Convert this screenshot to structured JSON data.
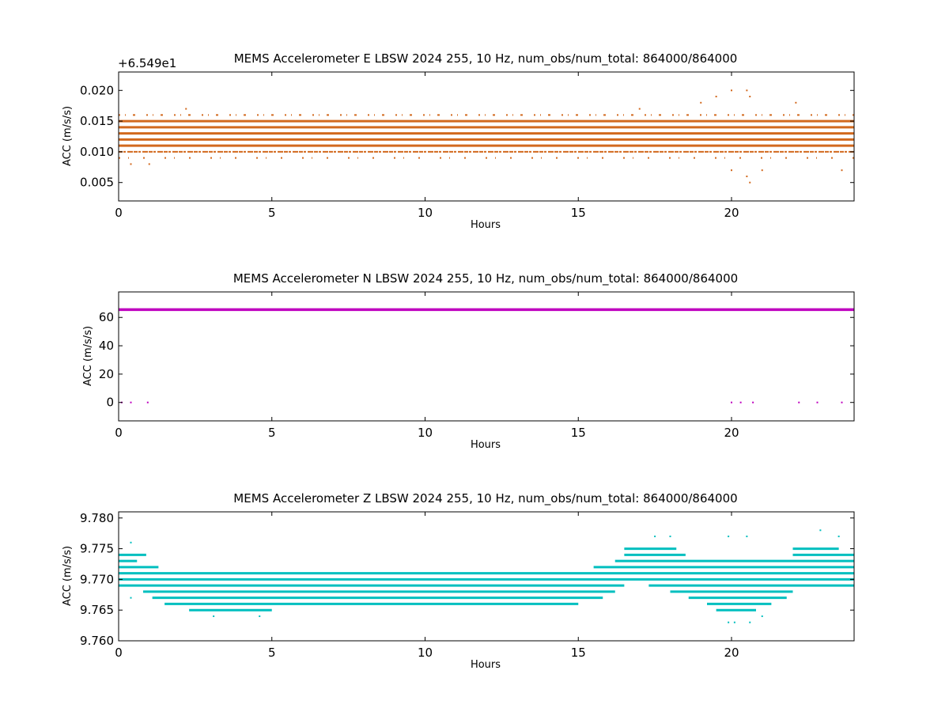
{
  "chart_data": [
    {
      "type": "scatter",
      "title": "MEMS Accelerometer E LBSW 2024 255, 10 Hz, num_obs/num_total: 864000/864000",
      "xlabel": "Hours",
      "ylabel": "ACC (m/s/s)",
      "y_offset_label": "+6.549e1",
      "y_offset": 65.49,
      "xlim": [
        0,
        24
      ],
      "ylim": [
        0.002,
        0.023
      ],
      "xticks": [
        "0",
        "5",
        "10",
        "15",
        "20"
      ],
      "yticks": [
        "0.005",
        "0.010",
        "0.015",
        "0.020"
      ],
      "color": "#d2691e",
      "grid": false,
      "series": [
        {
          "dense_levels": [
            0.011,
            0.012,
            0.013,
            0.014,
            0.015
          ],
          "sparse_levels": [
            0.01,
            0.016,
            0.009
          ],
          "outliers": [
            {
              "x": 0.4,
              "y": 0.008
            },
            {
              "x": 1.0,
              "y": 0.008
            },
            {
              "x": 2.2,
              "y": 0.017
            },
            {
              "x": 17.0,
              "y": 0.017
            },
            {
              "x": 19.0,
              "y": 0.018
            },
            {
              "x": 19.5,
              "y": 0.019
            },
            {
              "x": 20.0,
              "y": 0.02
            },
            {
              "x": 20.5,
              "y": 0.02
            },
            {
              "x": 20.6,
              "y": 0.019
            },
            {
              "x": 20.0,
              "y": 0.007
            },
            {
              "x": 20.5,
              "y": 0.006
            },
            {
              "x": 20.6,
              "y": 0.005
            },
            {
              "x": 21.0,
              "y": 0.007
            },
            {
              "x": 22.1,
              "y": 0.018
            },
            {
              "x": 23.6,
              "y": 0.007
            }
          ]
        }
      ]
    },
    {
      "type": "scatter",
      "title": "MEMS Accelerometer N LBSW 2024 255, 10 Hz, num_obs/num_total: 864000/864000",
      "xlabel": "Hours",
      "ylabel": "ACC (m/s/s)",
      "xlim": [
        0,
        24
      ],
      "ylim": [
        -13,
        78
      ],
      "xticks": [
        "0",
        "5",
        "10",
        "15",
        "20"
      ],
      "yticks": [
        "0",
        "20",
        "40",
        "60"
      ],
      "color": "#bf00bf",
      "grid": false,
      "series": [
        {
          "dense_levels": [
            65.5
          ],
          "outliers": [
            {
              "x": 0.1,
              "y": 0
            },
            {
              "x": 0.4,
              "y": 0
            },
            {
              "x": 0.95,
              "y": 0
            },
            {
              "x": 20.0,
              "y": 0
            },
            {
              "x": 20.3,
              "y": 0
            },
            {
              "x": 20.7,
              "y": 0
            },
            {
              "x": 22.2,
              "y": 0
            },
            {
              "x": 22.8,
              "y": 0
            },
            {
              "x": 23.6,
              "y": 0
            }
          ]
        }
      ]
    },
    {
      "type": "scatter",
      "title": "MEMS Accelerometer Z LBSW 2024 255, 10 Hz, num_obs/num_total: 864000/864000",
      "xlabel": "Hours",
      "ylabel": "ACC (m/s/s)",
      "xlim": [
        0,
        24
      ],
      "ylim": [
        9.76,
        9.781
      ],
      "xticks": [
        "0",
        "5",
        "10",
        "15",
        "20"
      ],
      "yticks": [
        "9.760",
        "9.765",
        "9.770",
        "9.775",
        "9.780"
      ],
      "color": "#00bfbf",
      "grid": false,
      "series": [
        {
          "level_segments": [
            {
              "y": 9.771,
              "segments": [
                [
                  0,
                  24
                ]
              ]
            },
            {
              "y": 9.77,
              "segments": [
                [
                  0,
                  24
                ]
              ]
            },
            {
              "y": 9.769,
              "segments": [
                [
                  0,
                  16.5
                ],
                [
                  17.3,
                  24
                ]
              ]
            },
            {
              "y": 9.772,
              "segments": [
                [
                  0,
                  1.3
                ],
                [
                  15.5,
                  24
                ]
              ]
            },
            {
              "y": 9.768,
              "segments": [
                [
                  0.8,
                  16.2
                ],
                [
                  18.0,
                  22.0
                ]
              ]
            },
            {
              "y": 9.767,
              "segments": [
                [
                  1.1,
                  15.8
                ],
                [
                  18.6,
                  21.8
                ]
              ]
            },
            {
              "y": 9.773,
              "segments": [
                [
                  0,
                  0.6
                ],
                [
                  16.2,
                  24
                ]
              ]
            },
            {
              "y": 9.766,
              "segments": [
                [
                  1.5,
                  15.0
                ],
                [
                  19.2,
                  21.3
                ]
              ]
            },
            {
              "y": 9.774,
              "segments": [
                [
                  0,
                  0.9
                ],
                [
                  16.5,
                  18.5
                ],
                [
                  22.0,
                  24
                ]
              ]
            },
            {
              "y": 9.765,
              "segments": [
                [
                  2.3,
                  5.0
                ],
                [
                  19.5,
                  20.8
                ]
              ]
            },
            {
              "y": 9.775,
              "segments": [
                [
                  16.5,
                  18.2
                ],
                [
                  22.0,
                  23.5
                ]
              ]
            }
          ],
          "outliers": [
            {
              "x": 0.4,
              "y": 9.776
            },
            {
              "x": 0.4,
              "y": 9.767
            },
            {
              "x": 3.1,
              "y": 9.764
            },
            {
              "x": 4.6,
              "y": 9.764
            },
            {
              "x": 17.5,
              "y": 9.777
            },
            {
              "x": 18.0,
              "y": 9.777
            },
            {
              "x": 19.9,
              "y": 9.777
            },
            {
              "x": 20.5,
              "y": 9.777
            },
            {
              "x": 22.9,
              "y": 9.778
            },
            {
              "x": 23.5,
              "y": 9.777
            },
            {
              "x": 19.9,
              "y": 9.763
            },
            {
              "x": 20.1,
              "y": 9.763
            },
            {
              "x": 20.6,
              "y": 9.763
            },
            {
              "x": 21.0,
              "y": 9.764
            }
          ]
        }
      ]
    }
  ]
}
